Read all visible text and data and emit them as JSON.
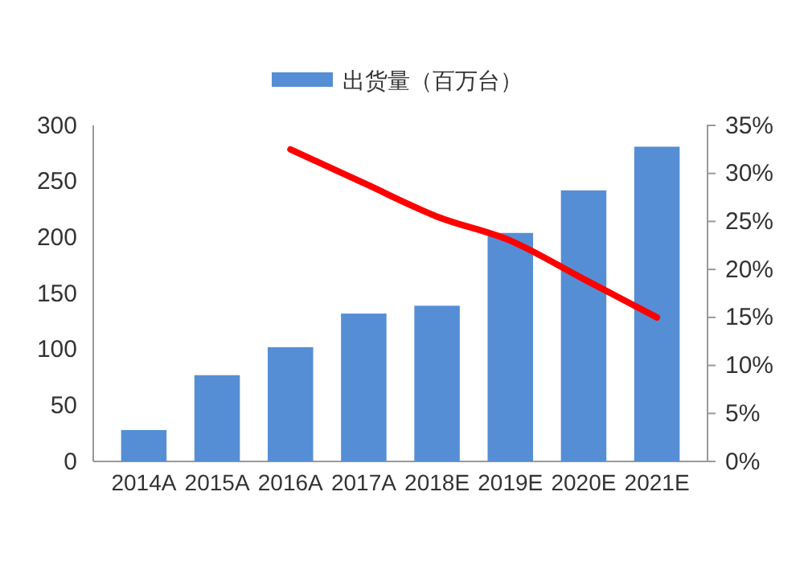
{
  "chart_data": {
    "type": "bar",
    "categories": [
      "2014A",
      "2015A",
      "2016A",
      "2017A",
      "2018E",
      "2019E",
      "2020E",
      "2021E"
    ],
    "series": [
      {
        "name": "出货量（百万台）",
        "color": "#558ed5",
        "values": [
          28,
          77,
          102,
          132,
          139,
          204,
          242,
          281
        ]
      },
      {
        "type": "line",
        "axis": "y2",
        "color": "#ff0000",
        "values": [
          null,
          null,
          32.5,
          29,
          25.5,
          23,
          19,
          15
        ]
      }
    ],
    "ylim": [
      0,
      300
    ],
    "yticks": [
      0,
      50,
      100,
      150,
      200,
      250,
      300
    ],
    "y2lim": [
      0,
      35
    ],
    "y2ticks": [
      {
        "value": 0,
        "label": "0%"
      },
      {
        "value": 5,
        "label": "5%"
      },
      {
        "value": 10,
        "label": "10%"
      },
      {
        "value": 15,
        "label": "15%"
      },
      {
        "value": 20,
        "label": "20%"
      },
      {
        "value": 25,
        "label": "25%"
      },
      {
        "value": 30,
        "label": "30%"
      },
      {
        "value": 35,
        "label": "35%"
      }
    ],
    "legend": "top",
    "grid": false,
    "line_style": "solid",
    "marker": "none"
  }
}
